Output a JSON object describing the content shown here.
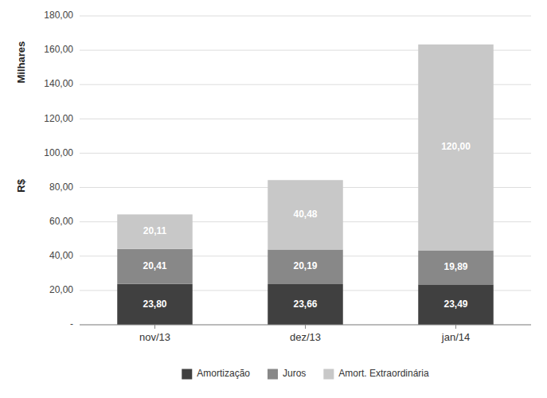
{
  "chart_data": {
    "type": "bar",
    "stacked": true,
    "categories": [
      "nov/13",
      "dez/13",
      "jan/14"
    ],
    "series": [
      {
        "name": "Amortização",
        "color": "#404040",
        "values": [
          23.8,
          23.66,
          23.49
        ],
        "value_labels": [
          "23,80",
          "23,66",
          "23,49"
        ]
      },
      {
        "name": "Juros",
        "color": "#888888",
        "values": [
          20.41,
          20.19,
          19.89
        ],
        "value_labels": [
          "20,41",
          "20,19",
          "19,89"
        ]
      },
      {
        "name": "Amort. Extraordinária",
        "color": "#C8C8C8",
        "values": [
          20.11,
          40.48,
          120.0
        ],
        "value_labels": [
          "20,11",
          "40,48",
          "120,00"
        ]
      }
    ],
    "ylabel": [
      "Milhares",
      "R$"
    ],
    "ylim": [
      0,
      180
    ],
    "yticks": [
      {
        "value": 0,
        "label": "-"
      },
      {
        "value": 20,
        "label": "20,00"
      },
      {
        "value": 40,
        "label": "40,00"
      },
      {
        "value": 60,
        "label": "60,00"
      },
      {
        "value": 80,
        "label": "80,00"
      },
      {
        "value": 100,
        "label": "100,00"
      },
      {
        "value": 120,
        "label": "120,00"
      },
      {
        "value": 140,
        "label": "140,00"
      },
      {
        "value": 160,
        "label": "160,00"
      },
      {
        "value": 180,
        "label": "180,00"
      }
    ],
    "grid": true,
    "legend": "bottom",
    "data_labels": true
  }
}
